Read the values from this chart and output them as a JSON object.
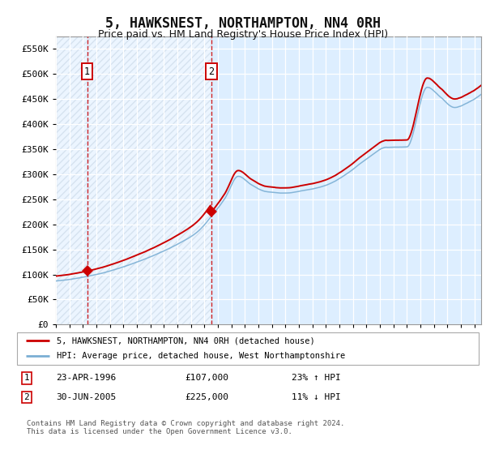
{
  "title": "5, HAWKSNEST, NORTHAMPTON, NN4 0RH",
  "subtitle": "Price paid vs. HM Land Registry's House Price Index (HPI)",
  "title_fontsize": 12,
  "subtitle_fontsize": 9,
  "background_color": "#ffffff",
  "plot_bg_color": "#ddeeff",
  "grid_color": "#ffffff",
  "ylim": [
    0,
    575000
  ],
  "yticks": [
    0,
    50000,
    100000,
    150000,
    200000,
    250000,
    300000,
    350000,
    400000,
    450000,
    500000,
    550000
  ],
  "ytick_labels": [
    "£0",
    "£50K",
    "£100K",
    "£150K",
    "£200K",
    "£250K",
    "£300K",
    "£350K",
    "£400K",
    "£450K",
    "£500K",
    "£550K"
  ],
  "hpi_color": "#7bafd4",
  "price_color": "#cc0000",
  "sale1_x": 1996.31,
  "sale1_y": 107000,
  "sale2_x": 2005.5,
  "sale2_y": 225000,
  "legend_items": [
    {
      "label": "5, HAWKSNEST, NORTHAMPTON, NN4 0RH (detached house)",
      "color": "#cc0000"
    },
    {
      "label": "HPI: Average price, detached house, West Northamptonshire",
      "color": "#7bafd4"
    }
  ],
  "table_rows": [
    {
      "num": "1",
      "date": "23-APR-1996",
      "price": "£107,000",
      "hpi": "23% ↑ HPI"
    },
    {
      "num": "2",
      "date": "30-JUN-2005",
      "price": "£225,000",
      "hpi": "11% ↓ HPI"
    }
  ],
  "footer": "Contains HM Land Registry data © Crown copyright and database right 2024.\nThis data is licensed under the Open Government Licence v3.0.",
  "xmin": 1994.0,
  "xmax": 2025.5
}
